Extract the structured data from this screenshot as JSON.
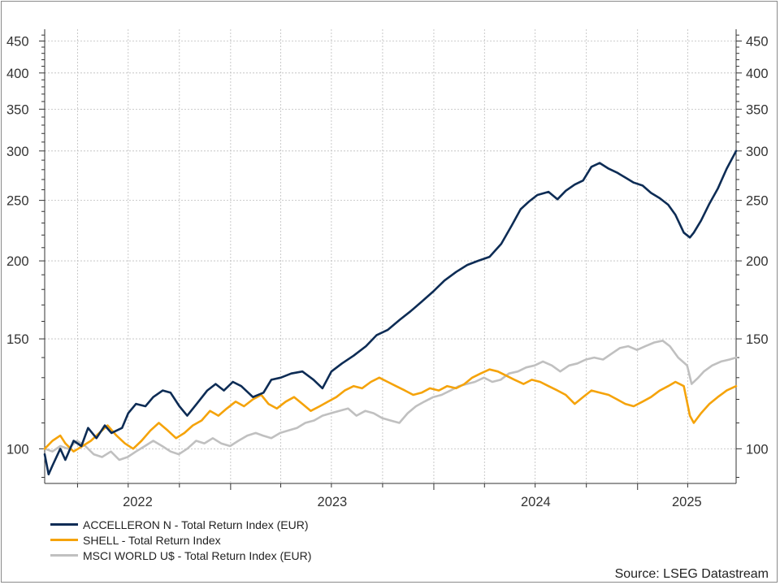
{
  "chart_data": {
    "type": "line",
    "title": "",
    "xlabel": "",
    "ylabel": "",
    "y_scale": "log",
    "ylim": [
      88,
      470
    ],
    "xlim": [
      "2022-02-01",
      "2025-06-27"
    ],
    "y_ticks": [
      100,
      150,
      200,
      250,
      300,
      350,
      400,
      450
    ],
    "y_axis_sides": [
      "left",
      "right"
    ],
    "x_ticks": [
      "2022",
      "2023",
      "2024",
      "2025"
    ],
    "grid": true,
    "legend_position": "bottom-left",
    "source": "Source: LSEG Datastream",
    "series": [
      {
        "name": "ACCELLERON N - Total Return Index (EUR)",
        "color": "#0d2c55",
        "points": [
          [
            "2022-02-01",
            98
          ],
          [
            "2022-02-08",
            91
          ],
          [
            "2022-02-15",
            94
          ],
          [
            "2022-03-01",
            100
          ],
          [
            "2022-03-10",
            96
          ],
          [
            "2022-03-25",
            103
          ],
          [
            "2022-04-08",
            101
          ],
          [
            "2022-04-20",
            108
          ],
          [
            "2022-05-05",
            104
          ],
          [
            "2022-05-20",
            109
          ],
          [
            "2022-06-01",
            106
          ],
          [
            "2022-06-20",
            108
          ],
          [
            "2022-07-01",
            114
          ],
          [
            "2022-07-15",
            118
          ],
          [
            "2022-08-01",
            117
          ],
          [
            "2022-08-15",
            121
          ],
          [
            "2022-09-01",
            124
          ],
          [
            "2022-09-15",
            123
          ],
          [
            "2022-10-01",
            117
          ],
          [
            "2022-10-15",
            113
          ],
          [
            "2022-11-01",
            118
          ],
          [
            "2022-11-20",
            124
          ],
          [
            "2022-12-05",
            127
          ],
          [
            "2022-12-20",
            124
          ],
          [
            "2023-01-05",
            128
          ],
          [
            "2023-01-20",
            126
          ],
          [
            "2023-02-10",
            121
          ],
          [
            "2023-03-01",
            123
          ],
          [
            "2023-03-15",
            129
          ],
          [
            "2023-04-01",
            130
          ],
          [
            "2023-04-20",
            132
          ],
          [
            "2023-05-10",
            133
          ],
          [
            "2023-05-30",
            129
          ],
          [
            "2023-06-15",
            125
          ],
          [
            "2023-07-01",
            133
          ],
          [
            "2023-07-20",
            137
          ],
          [
            "2023-08-10",
            141
          ],
          [
            "2023-09-01",
            146
          ],
          [
            "2023-09-20",
            152
          ],
          [
            "2023-10-10",
            155
          ],
          [
            "2023-11-01",
            161
          ],
          [
            "2023-11-20",
            166
          ],
          [
            "2023-12-10",
            172
          ],
          [
            "2024-01-01",
            179
          ],
          [
            "2024-01-20",
            186
          ],
          [
            "2024-02-10",
            192
          ],
          [
            "2024-03-01",
            197
          ],
          [
            "2024-03-20",
            200
          ],
          [
            "2024-04-10",
            203
          ],
          [
            "2024-05-01",
            213
          ],
          [
            "2024-05-20",
            228
          ],
          [
            "2024-06-05",
            242
          ],
          [
            "2024-06-20",
            249
          ],
          [
            "2024-07-05",
            255
          ],
          [
            "2024-07-25",
            258
          ],
          [
            "2024-08-10",
            251
          ],
          [
            "2024-08-25",
            259
          ],
          [
            "2024-09-10",
            265
          ],
          [
            "2024-09-25",
            269
          ],
          [
            "2024-10-10",
            283
          ],
          [
            "2024-10-25",
            287
          ],
          [
            "2024-11-10",
            281
          ],
          [
            "2024-11-25",
            277
          ],
          [
            "2024-12-10",
            272
          ],
          [
            "2024-12-25",
            267
          ],
          [
            "2025-01-10",
            264
          ],
          [
            "2025-01-25",
            257
          ],
          [
            "2025-02-10",
            252
          ],
          [
            "2025-02-25",
            246
          ],
          [
            "2025-03-10",
            237
          ],
          [
            "2025-03-25",
            222
          ],
          [
            "2025-04-05",
            218
          ],
          [
            "2025-04-12",
            222
          ],
          [
            "2025-04-25",
            232
          ],
          [
            "2025-05-10",
            247
          ],
          [
            "2025-05-25",
            261
          ],
          [
            "2025-06-10",
            281
          ],
          [
            "2025-06-27",
            300
          ]
        ]
      },
      {
        "name": "SHELL - Total Return Index",
        "color": "#f5a30a",
        "points": [
          [
            "2022-02-01",
            100
          ],
          [
            "2022-02-15",
            103
          ],
          [
            "2022-03-01",
            105
          ],
          [
            "2022-03-10",
            102
          ],
          [
            "2022-03-25",
            99
          ],
          [
            "2022-04-10",
            101
          ],
          [
            "2022-04-25",
            103
          ],
          [
            "2022-05-10",
            106
          ],
          [
            "2022-05-25",
            109
          ],
          [
            "2022-06-10",
            105
          ],
          [
            "2022-06-25",
            102
          ],
          [
            "2022-07-10",
            100
          ],
          [
            "2022-07-25",
            103
          ],
          [
            "2022-08-10",
            107
          ],
          [
            "2022-08-25",
            110
          ],
          [
            "2022-09-10",
            107
          ],
          [
            "2022-09-25",
            104
          ],
          [
            "2022-10-10",
            106
          ],
          [
            "2022-10-25",
            109
          ],
          [
            "2022-11-10",
            111
          ],
          [
            "2022-11-25",
            115
          ],
          [
            "2022-12-10",
            113
          ],
          [
            "2022-12-25",
            116
          ],
          [
            "2023-01-10",
            119
          ],
          [
            "2023-01-25",
            117
          ],
          [
            "2023-02-10",
            120
          ],
          [
            "2023-02-25",
            122
          ],
          [
            "2023-03-10",
            118
          ],
          [
            "2023-03-25",
            116
          ],
          [
            "2023-04-10",
            119
          ],
          [
            "2023-04-25",
            121
          ],
          [
            "2023-05-10",
            118
          ],
          [
            "2023-05-25",
            115
          ],
          [
            "2023-06-10",
            117
          ],
          [
            "2023-06-25",
            119
          ],
          [
            "2023-07-10",
            121
          ],
          [
            "2023-07-25",
            124
          ],
          [
            "2023-08-10",
            126
          ],
          [
            "2023-08-25",
            125
          ],
          [
            "2023-09-10",
            128
          ],
          [
            "2023-09-25",
            130
          ],
          [
            "2023-10-10",
            128
          ],
          [
            "2023-10-25",
            126
          ],
          [
            "2023-11-10",
            124
          ],
          [
            "2023-11-25",
            122
          ],
          [
            "2023-12-10",
            123
          ],
          [
            "2023-12-25",
            125
          ],
          [
            "2024-01-10",
            124
          ],
          [
            "2024-01-25",
            126
          ],
          [
            "2024-02-10",
            125
          ],
          [
            "2024-02-25",
            127
          ],
          [
            "2024-03-10",
            130
          ],
          [
            "2024-03-25",
            132
          ],
          [
            "2024-04-10",
            134
          ],
          [
            "2024-04-25",
            133
          ],
          [
            "2024-05-10",
            131
          ],
          [
            "2024-05-25",
            129
          ],
          [
            "2024-06-10",
            127
          ],
          [
            "2024-06-25",
            129
          ],
          [
            "2024-07-10",
            128
          ],
          [
            "2024-07-25",
            126
          ],
          [
            "2024-08-10",
            124
          ],
          [
            "2024-08-25",
            122
          ],
          [
            "2024-09-10",
            118
          ],
          [
            "2024-09-25",
            121
          ],
          [
            "2024-10-10",
            124
          ],
          [
            "2024-10-25",
            123
          ],
          [
            "2024-11-10",
            122
          ],
          [
            "2024-11-25",
            120
          ],
          [
            "2024-12-10",
            118
          ],
          [
            "2024-12-25",
            117
          ],
          [
            "2025-01-10",
            119
          ],
          [
            "2025-01-25",
            121
          ],
          [
            "2025-02-10",
            124
          ],
          [
            "2025-02-25",
            126
          ],
          [
            "2025-03-10",
            128
          ],
          [
            "2025-03-25",
            126
          ],
          [
            "2025-04-05",
            113
          ],
          [
            "2025-04-12",
            110
          ],
          [
            "2025-04-25",
            114
          ],
          [
            "2025-05-10",
            118
          ],
          [
            "2025-05-25",
            121
          ],
          [
            "2025-06-10",
            124
          ],
          [
            "2025-06-27",
            126
          ]
        ]
      },
      {
        "name": "MSCI WORLD U$ - Total Return Index (EUR)",
        "color": "#c0c0c0",
        "points": [
          [
            "2022-02-01",
            100
          ],
          [
            "2022-02-15",
            99
          ],
          [
            "2022-03-01",
            101
          ],
          [
            "2022-03-15",
            100
          ],
          [
            "2022-03-31",
            103
          ],
          [
            "2022-04-15",
            101
          ],
          [
            "2022-04-30",
            98
          ],
          [
            "2022-05-15",
            97
          ],
          [
            "2022-05-31",
            99
          ],
          [
            "2022-06-15",
            96
          ],
          [
            "2022-06-30",
            97
          ],
          [
            "2022-07-15",
            99
          ],
          [
            "2022-07-31",
            101
          ],
          [
            "2022-08-15",
            103
          ],
          [
            "2022-08-31",
            101
          ],
          [
            "2022-09-15",
            99
          ],
          [
            "2022-09-30",
            98
          ],
          [
            "2022-10-15",
            100
          ],
          [
            "2022-10-31",
            103
          ],
          [
            "2022-11-15",
            102
          ],
          [
            "2022-11-30",
            104
          ],
          [
            "2022-12-15",
            102
          ],
          [
            "2022-12-31",
            101
          ],
          [
            "2023-01-15",
            103
          ],
          [
            "2023-01-31",
            105
          ],
          [
            "2023-02-15",
            106
          ],
          [
            "2023-02-28",
            105
          ],
          [
            "2023-03-15",
            104
          ],
          [
            "2023-03-31",
            106
          ],
          [
            "2023-04-15",
            107
          ],
          [
            "2023-04-30",
            108
          ],
          [
            "2023-05-15",
            110
          ],
          [
            "2023-05-31",
            111
          ],
          [
            "2023-06-15",
            113
          ],
          [
            "2023-06-30",
            114
          ],
          [
            "2023-07-15",
            115
          ],
          [
            "2023-07-31",
            116
          ],
          [
            "2023-08-15",
            113
          ],
          [
            "2023-08-31",
            115
          ],
          [
            "2023-09-15",
            114
          ],
          [
            "2023-09-30",
            112
          ],
          [
            "2023-10-15",
            111
          ],
          [
            "2023-10-31",
            110
          ],
          [
            "2023-11-15",
            114
          ],
          [
            "2023-11-30",
            117
          ],
          [
            "2023-12-15",
            119
          ],
          [
            "2023-12-31",
            121
          ],
          [
            "2024-01-15",
            122
          ],
          [
            "2024-01-31",
            124
          ],
          [
            "2024-02-15",
            126
          ],
          [
            "2024-02-29",
            127
          ],
          [
            "2024-03-15",
            128
          ],
          [
            "2024-03-31",
            130
          ],
          [
            "2024-04-15",
            128
          ],
          [
            "2024-04-30",
            129
          ],
          [
            "2024-05-15",
            132
          ],
          [
            "2024-05-31",
            133
          ],
          [
            "2024-06-15",
            135
          ],
          [
            "2024-06-30",
            136
          ],
          [
            "2024-07-15",
            138
          ],
          [
            "2024-07-31",
            136
          ],
          [
            "2024-08-15",
            133
          ],
          [
            "2024-08-31",
            136
          ],
          [
            "2024-09-15",
            137
          ],
          [
            "2024-09-30",
            139
          ],
          [
            "2024-10-15",
            140
          ],
          [
            "2024-10-31",
            139
          ],
          [
            "2024-11-15",
            142
          ],
          [
            "2024-11-30",
            145
          ],
          [
            "2024-12-15",
            146
          ],
          [
            "2024-12-31",
            144
          ],
          [
            "2025-01-15",
            146
          ],
          [
            "2025-01-31",
            148
          ],
          [
            "2025-02-15",
            149
          ],
          [
            "2025-02-28",
            146
          ],
          [
            "2025-03-15",
            140
          ],
          [
            "2025-03-31",
            136
          ],
          [
            "2025-04-08",
            127
          ],
          [
            "2025-04-20",
            130
          ],
          [
            "2025-04-30",
            133
          ],
          [
            "2025-05-15",
            136
          ],
          [
            "2025-05-31",
            138
          ],
          [
            "2025-06-15",
            139
          ],
          [
            "2025-06-27",
            140
          ]
        ]
      }
    ]
  }
}
